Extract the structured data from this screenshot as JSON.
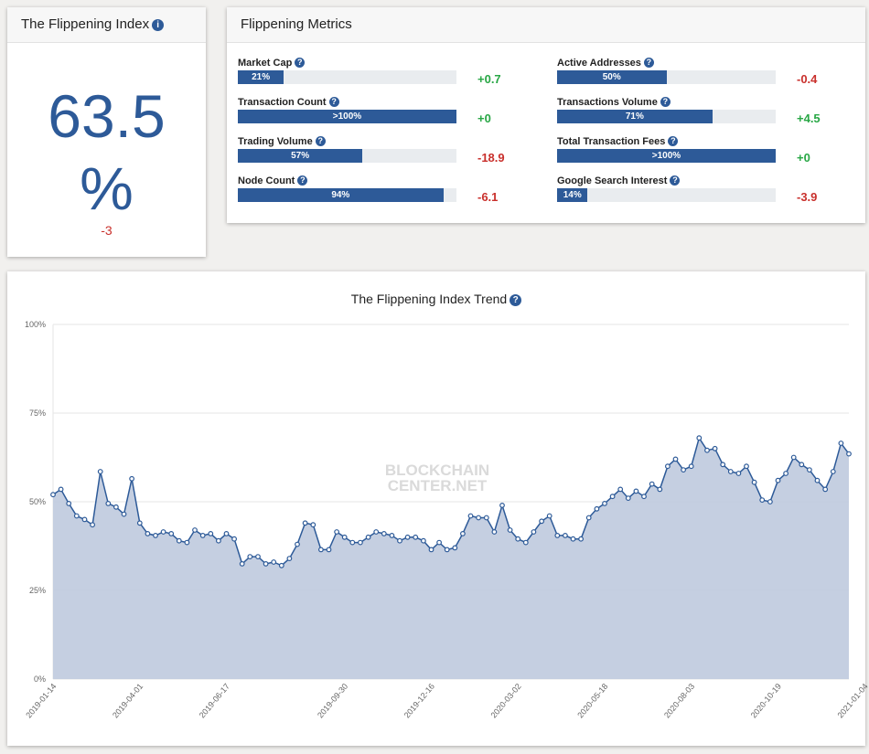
{
  "index_panel": {
    "title": "The Flippening Index",
    "value": "63.5",
    "unit": "%",
    "change": "-3"
  },
  "metrics_panel": {
    "title": "Flippening Metrics",
    "metrics": [
      {
        "label": "Market Cap",
        "bar_text": "21%",
        "fill": 0.21,
        "change": "+0.7"
      },
      {
        "label": "Transaction Count",
        "bar_text": ">100%",
        "fill": 1.0,
        "change": "+0"
      },
      {
        "label": "Trading Volume",
        "bar_text": "57%",
        "fill": 0.57,
        "change": "-18.9"
      },
      {
        "label": "Node Count",
        "bar_text": "94%",
        "fill": 0.94,
        "change": "-6.1"
      },
      {
        "label": "Active Addresses",
        "bar_text": "50%",
        "fill": 0.5,
        "change": "-0.4"
      },
      {
        "label": "Transactions Volume",
        "bar_text": "71%",
        "fill": 0.71,
        "change": "+4.5"
      },
      {
        "label": "Total Transaction Fees",
        "bar_text": ">100%",
        "fill": 1.0,
        "change": "+0"
      },
      {
        "label": "Google Search Interest",
        "bar_text": "14%",
        "fill": 0.14,
        "change": "-3.9"
      }
    ]
  },
  "watermark": [
    "BLOCKCHAIN",
    "CENTER.NET"
  ],
  "colors": {
    "accent": "#2d5a98",
    "positive": "#28a745",
    "negative": "#c9302c",
    "area_fill": "#c2ccdf"
  },
  "chart_data": {
    "type": "area",
    "title": "The Flippening Index Trend",
    "ylim": [
      0,
      100
    ],
    "yticks": [
      "0%",
      "25%",
      "50%",
      "75%",
      "100%"
    ],
    "ytick_values": [
      0,
      25,
      50,
      75,
      100
    ],
    "x_tick_labels": [
      "2019-01-14",
      "2019-04-01",
      "2019-06-17",
      "2019-09-30",
      "2019-12-16",
      "2020-03-02",
      "2020-05-18",
      "2020-08-03",
      "2020-10-19",
      "2021-01-04"
    ],
    "x_tick_index": [
      0,
      11,
      22,
      37,
      48,
      59,
      70,
      81,
      92,
      103
    ],
    "grid": true,
    "series": [
      {
        "values": [
          52,
          53.5,
          49.5,
          46,
          45,
          43.5,
          58.5,
          49.5,
          48.5,
          46.5,
          56.5,
          44,
          41,
          40.5,
          41.5,
          41,
          39,
          38.5,
          42,
          40.5,
          41,
          39,
          41,
          39.5,
          32.5,
          34.5,
          34.5,
          32.5,
          33,
          32,
          34,
          38,
          44,
          43.5,
          36.5,
          36.5,
          41.5,
          40,
          38.5,
          38.5,
          40,
          41.5,
          41,
          40.5,
          39,
          40,
          40,
          39,
          36.5,
          38.5,
          36.5,
          37,
          41,
          46,
          45.5,
          45.5,
          41.5,
          49,
          42,
          39.5,
          38.5,
          41.5,
          44.5,
          46,
          40.5,
          40.5,
          39.5,
          39.5,
          45.5,
          48,
          49.5,
          51.5,
          53.5,
          51,
          53,
          51.5,
          55,
          53.5,
          60,
          62,
          59,
          60,
          68,
          64.5,
          65,
          60.5,
          58.5,
          58,
          60,
          55.5,
          50.5,
          50,
          56,
          58,
          62.5,
          60.5,
          59,
          56,
          53.5,
          58.5,
          66.5,
          63.5
        ]
      }
    ]
  }
}
